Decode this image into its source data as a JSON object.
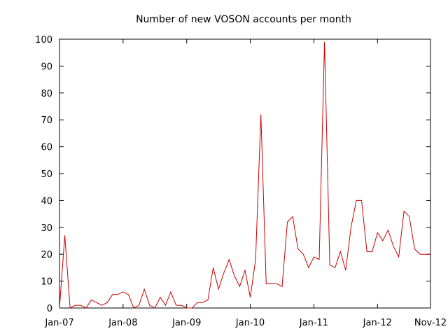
{
  "chart_data": {
    "type": "line",
    "title": "Number of new VOSON accounts per month",
    "xlabel": "",
    "ylabel": "",
    "ylim": [
      0,
      100
    ],
    "yticks": [
      0,
      10,
      20,
      30,
      40,
      50,
      60,
      70,
      80,
      90,
      100
    ],
    "xticks": [
      {
        "label": "Jan-07",
        "month_index": 0
      },
      {
        "label": "Jan-08",
        "month_index": 12
      },
      {
        "label": "Jan-09",
        "month_index": 24
      },
      {
        "label": "Jan-10",
        "month_index": 36
      },
      {
        "label": "Jan-11",
        "month_index": 48
      },
      {
        "label": "Jan-12",
        "month_index": 60
      },
      {
        "label": "Nov-12",
        "month_index": 70
      }
    ],
    "grid": false,
    "legend": "none",
    "series": [
      {
        "color": "#cc0000",
        "x": [
          0,
          1,
          2,
          3,
          4,
          5,
          6,
          7,
          8,
          9,
          10,
          11,
          12,
          13,
          14,
          15,
          16,
          17,
          18,
          19,
          20,
          21,
          22,
          23,
          24,
          25,
          26,
          27,
          28,
          29,
          30,
          31,
          32,
          33,
          34,
          35,
          36,
          37,
          38,
          39,
          40,
          41,
          42,
          43,
          44,
          45,
          46,
          47,
          48,
          49,
          50,
          51,
          52,
          53,
          54,
          55,
          56,
          57,
          58,
          59,
          60,
          61,
          62,
          63,
          64,
          65,
          66,
          67,
          68,
          69,
          70
        ],
        "values": [
          0,
          27,
          0,
          1,
          1,
          0,
          3,
          2,
          1,
          2,
          5,
          5,
          6,
          5,
          0,
          1,
          7,
          1,
          0,
          4,
          1,
          6,
          1,
          1,
          0,
          0,
          2,
          2,
          3,
          15,
          7,
          13,
          18,
          12,
          8,
          14,
          4,
          18,
          72,
          9,
          9,
          9,
          8,
          32,
          34,
          22,
          20,
          15,
          19,
          18,
          99,
          16,
          15,
          21,
          14,
          30,
          40,
          40,
          21,
          21,
          28,
          25,
          29,
          23,
          19,
          36,
          34,
          22,
          20,
          20,
          20
        ]
      }
    ]
  }
}
